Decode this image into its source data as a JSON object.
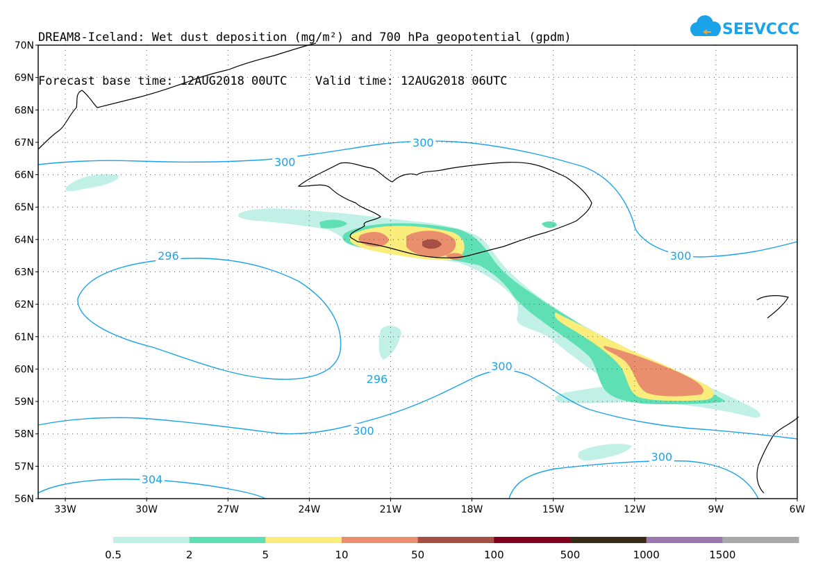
{
  "title": {
    "line1": "DREAM8-Iceland: Wet dust deposition (mg/m²) and 700 hPa geopotential (gpdm)",
    "line2": "Forecast base time: 12AUG2018 00UTC    Valid time: 12AUG2018 06UTC"
  },
  "logo": {
    "text": "SEEVCCC",
    "color": "#1aa3e8"
  },
  "map": {
    "lon_range": [
      -34,
      -6
    ],
    "lat_range": [
      56,
      70
    ],
    "lat_ticks": [
      "56N",
      "57N",
      "58N",
      "59N",
      "60N",
      "61N",
      "62N",
      "63N",
      "64N",
      "65N",
      "66N",
      "67N",
      "68N",
      "69N",
      "70N"
    ],
    "lon_ticks": [
      "33W",
      "30W",
      "27W",
      "24W",
      "21W",
      "18W",
      "15W",
      "12W",
      "9W",
      "6W"
    ],
    "contour_color": "#1aa3e8",
    "contour_labels": [
      {
        "text": "300",
        "lon": -24.9,
        "lat": 66.4
      },
      {
        "text": "300",
        "lon": -19.8,
        "lat": 67.0
      },
      {
        "text": "300",
        "lon": -10.3,
        "lat": 63.5
      },
      {
        "text": "296",
        "lon": -29.2,
        "lat": 63.5
      },
      {
        "text": "296",
        "lon": -21.5,
        "lat": 59.7
      },
      {
        "text": "300",
        "lon": -16.9,
        "lat": 60.1
      },
      {
        "text": "300",
        "lon": -22.0,
        "lat": 58.1
      },
      {
        "text": "300",
        "lon": -11.0,
        "lat": 57.3
      },
      {
        "text": "304",
        "lon": -29.8,
        "lat": 56.6
      }
    ]
  },
  "colorbar": {
    "colors": [
      "#c1f1e6",
      "#5fe0b4",
      "#fbed7c",
      "#ea8f6e",
      "#a64f45",
      "#800020",
      "#3a2b18",
      "#9b79b0",
      "#a9a9a9"
    ],
    "labels": [
      "0.5",
      "2",
      "5",
      "10",
      "50",
      "100",
      "500",
      "1000",
      "1500"
    ]
  }
}
